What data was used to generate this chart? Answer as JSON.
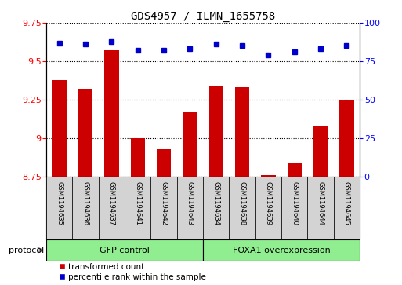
{
  "title": "GDS4957 / ILMN_1655758",
  "samples": [
    "GSM1194635",
    "GSM1194636",
    "GSM1194637",
    "GSM1194641",
    "GSM1194642",
    "GSM1194643",
    "GSM1194634",
    "GSM1194638",
    "GSM1194639",
    "GSM1194640",
    "GSM1194644",
    "GSM1194645"
  ],
  "transformed_count": [
    9.38,
    9.32,
    9.57,
    9.0,
    8.93,
    9.17,
    9.34,
    9.33,
    8.76,
    8.84,
    9.08,
    9.25
  ],
  "percentile_rank": [
    87,
    86,
    88,
    82,
    82,
    83,
    86,
    85,
    79,
    81,
    83,
    85
  ],
  "ylim_left": [
    8.75,
    9.75
  ],
  "ylim_right": [
    0,
    100
  ],
  "yticks_left": [
    8.75,
    9.0,
    9.25,
    9.5,
    9.75
  ],
  "yticks_right": [
    0,
    25,
    50,
    75,
    100
  ],
  "bar_color": "#cc0000",
  "dot_color": "#0000cc",
  "bar_width": 0.55,
  "legend_items": [
    "transformed count",
    "percentile rank within the sample"
  ],
  "protocol_label": "protocol",
  "tick_label_area_color": "#d3d3d3",
  "group_color": "#90ee90",
  "gfp_label": "GFP control",
  "foxa1_label": "FOXA1 overexpression",
  "title_fontsize": 10,
  "axis_fontsize": 8,
  "sample_fontsize": 6,
  "legend_fontsize": 7.5
}
